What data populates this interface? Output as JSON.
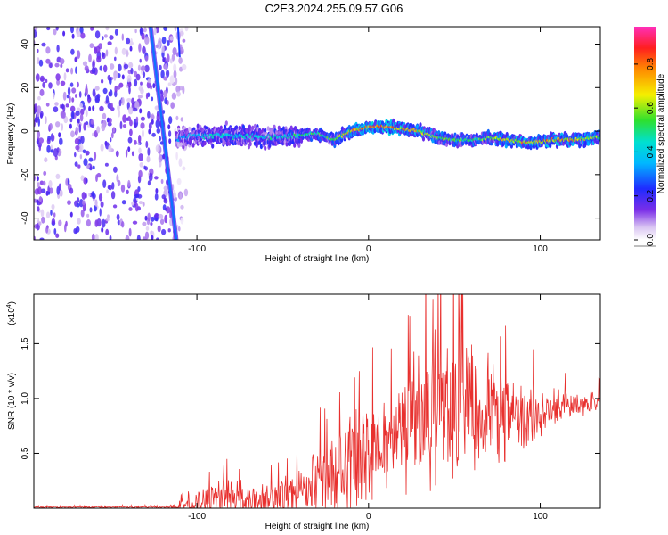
{
  "title": "C2E3.2024.255.09.57.G06",
  "chart_data": [
    {
      "type": "heatmap",
      "xlabel": "Height of straight line (km)",
      "ylabel": "Frequency (Hz)",
      "xlim": [
        -195,
        135
      ],
      "ylim": [
        -50,
        48
      ],
      "xticks": [
        -100,
        0,
        100
      ],
      "yticks": [
        -40,
        -20,
        0,
        20,
        40
      ],
      "colorbar": {
        "label": "Normalized spectral amplitude",
        "range": [
          0.0,
          0.97
        ],
        "ticks": [
          0.0,
          0.2,
          0.4,
          0.6,
          0.8
        ],
        "tick_labels": [
          "0.0",
          "0.2",
          "0.4",
          "0.6",
          "0.8"
        ]
      },
      "ridge": {
        "x": [
          -110,
          -100,
          -80,
          -60,
          -40,
          -30,
          -20,
          -10,
          0,
          10,
          20,
          30,
          40,
          50,
          60,
          70,
          80,
          90,
          100,
          110,
          120,
          133
        ],
        "y": [
          -3,
          -2,
          -2,
          -3,
          -2,
          -1,
          -4,
          0,
          2,
          2,
          1,
          0,
          -3,
          -4,
          -4,
          -3,
          -4,
          -5,
          -5,
          -4,
          -4,
          -3
        ],
        "amplitude": [
          0.35,
          0.45,
          0.5,
          0.5,
          0.55,
          0.6,
          0.6,
          0.8,
          0.9,
          0.92,
          0.85,
          0.75,
          0.7,
          0.6,
          0.62,
          0.7,
          0.75,
          0.8,
          0.85,
          0.85,
          0.8,
          0.7
        ]
      },
      "streak": {
        "x_top": -127,
        "x_bottom": -112,
        "amplitude": 0.3
      },
      "noise_region": {
        "x": [
          -195,
          -110
        ],
        "amplitude": 0.15
      }
    },
    {
      "type": "line",
      "xlabel": "Height of straight line (km)",
      "ylabel": "SNR (10 * v/v)",
      "scale_label": "(x10",
      "scale_exponent": "4",
      "xlim": [
        -195,
        135
      ],
      "ylim": [
        0,
        1.95
      ],
      "xticks": [
        -100,
        0,
        100
      ],
      "yticks": [
        0.5,
        1.0,
        1.5
      ],
      "ytick_labels": [
        "0.5",
        "1.0",
        "1.5"
      ],
      "color": "#e8302e",
      "envelope": {
        "x": [
          -195,
          -120,
          -110,
          -100,
          -90,
          -80,
          -70,
          -60,
          -50,
          -40,
          -30,
          -20,
          -10,
          0,
          10,
          20,
          30,
          40,
          50,
          60,
          70,
          80,
          90,
          100,
          110,
          120,
          135
        ],
        "base": [
          0.01,
          0.01,
          0.02,
          0.05,
          0.08,
          0.1,
          0.08,
          0.08,
          0.1,
          0.15,
          0.2,
          0.3,
          0.4,
          0.55,
          0.6,
          0.7,
          0.8,
          0.9,
          1.0,
          0.95,
          0.9,
          0.85,
          0.8,
          0.85,
          0.9,
          0.95,
          1.0
        ],
        "spread": [
          0.01,
          0.01,
          0.05,
          0.12,
          0.18,
          0.2,
          0.18,
          0.18,
          0.22,
          0.3,
          0.38,
          0.45,
          0.55,
          0.5,
          0.55,
          0.6,
          0.75,
          0.8,
          0.8,
          0.75,
          0.6,
          0.5,
          0.4,
          0.3,
          0.25,
          0.18,
          0.1
        ]
      }
    }
  ]
}
